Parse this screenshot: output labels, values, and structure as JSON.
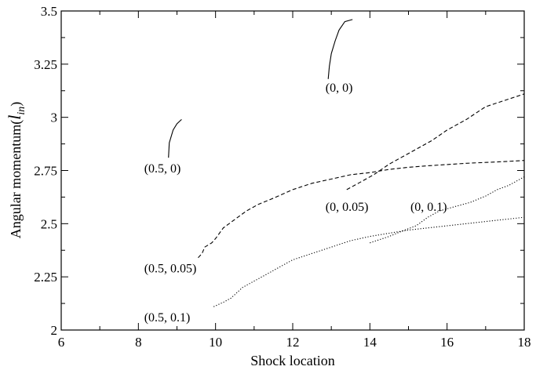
{
  "chart_data": {
    "type": "line",
    "title": "",
    "xlabel": "Shock location",
    "ylabel_main": "Angular momentum(",
    "ylabel_var": "l",
    "ylabel_sub": "in",
    "ylabel_close": ")",
    "xlim": [
      6,
      18
    ],
    "ylim": [
      2,
      3.5
    ],
    "xticks": [
      6,
      8,
      10,
      12,
      14,
      16,
      18
    ],
    "xtick_labels": [
      "6",
      "8",
      "10",
      "12",
      "14",
      "16",
      "18"
    ],
    "yticks": [
      2,
      2.25,
      2.5,
      2.75,
      3,
      3.25,
      3.5
    ],
    "ytick_labels": [
      "2",
      "2.25",
      "2.5",
      "2.75",
      "3",
      "3.25",
      "3.5"
    ],
    "grid": false,
    "series": [
      {
        "label": "(0, 0)",
        "style": "solid",
        "segments": [
          [
            [
              12.92,
              3.18
            ],
            [
              12.95,
              3.24
            ],
            [
              13.0,
              3.3
            ],
            [
              13.1,
              3.36
            ],
            [
              13.2,
              3.41
            ],
            [
              13.35,
              3.45
            ],
            [
              13.55,
              3.46
            ]
          ]
        ]
      },
      {
        "label": "(0.5, 0)",
        "style": "solid",
        "segments": [
          [
            [
              8.78,
              2.81
            ],
            [
              8.8,
              2.88
            ],
            [
              8.9,
              2.94
            ],
            [
              9.0,
              2.97
            ],
            [
              9.12,
              2.99
            ]
          ]
        ]
      },
      {
        "label": "(0, 0.05)",
        "style": "dashed",
        "segments": [
          [
            [
              13.4,
              2.66
            ],
            [
              13.7,
              2.69
            ],
            [
              14.1,
              2.73
            ],
            [
              14.5,
              2.78
            ],
            [
              14.8,
              2.81
            ],
            [
              15.2,
              2.85
            ],
            [
              15.6,
              2.89
            ],
            [
              16.0,
              2.94
            ],
            [
              16.5,
              2.99
            ],
            [
              17.0,
              3.05
            ],
            [
              17.5,
              3.08
            ],
            [
              18.0,
              3.11
            ]
          ]
        ]
      },
      {
        "label": "(0.5, 0.05)",
        "style": "dashed",
        "segments": [
          [
            [
              9.55,
              2.34
            ],
            [
              9.65,
              2.36
            ],
            [
              9.72,
              2.39
            ],
            [
              9.9,
              2.41
            ],
            [
              10.0,
              2.43
            ],
            [
              10.2,
              2.48
            ],
            [
              10.5,
              2.52
            ],
            [
              10.8,
              2.56
            ],
            [
              11.1,
              2.59
            ],
            [
              11.5,
              2.62
            ],
            [
              12.0,
              2.66
            ],
            [
              12.5,
              2.69
            ],
            [
              13.0,
              2.71
            ],
            [
              13.5,
              2.73
            ],
            [
              14.0,
              2.74
            ],
            [
              14.5,
              2.755
            ],
            [
              15.0,
              2.765
            ],
            [
              15.5,
              2.772
            ],
            [
              16.0,
              2.778
            ],
            [
              16.5,
              2.784
            ],
            [
              17.0,
              2.788
            ],
            [
              17.5,
              2.792
            ],
            [
              18.0,
              2.797
            ]
          ]
        ]
      },
      {
        "label": "(0, 0.1)",
        "style": "dotted",
        "segments": [
          [
            [
              14.0,
              2.41
            ],
            [
              14.5,
              2.44
            ],
            [
              14.9,
              2.47
            ],
            [
              15.2,
              2.49
            ],
            [
              15.5,
              2.53
            ],
            [
              15.8,
              2.56
            ],
            [
              16.2,
              2.58
            ],
            [
              16.6,
              2.6
            ],
            [
              17.0,
              2.63
            ],
            [
              17.3,
              2.66
            ],
            [
              17.6,
              2.68
            ],
            [
              18.0,
              2.72
            ]
          ]
        ]
      },
      {
        "label": "(0.5, 0.1)",
        "style": "dotted",
        "segments": [
          [
            [
              9.95,
              2.11
            ],
            [
              10.2,
              2.13
            ],
            [
              10.4,
              2.15
            ],
            [
              10.7,
              2.2
            ],
            [
              11.0,
              2.23
            ],
            [
              11.3,
              2.26
            ],
            [
              11.7,
              2.3
            ],
            [
              12.0,
              2.33
            ],
            [
              12.5,
              2.36
            ],
            [
              13.0,
              2.39
            ],
            [
              13.5,
              2.42
            ],
            [
              14.0,
              2.44
            ],
            [
              14.5,
              2.455
            ],
            [
              15.0,
              2.47
            ],
            [
              15.5,
              2.48
            ],
            [
              16.0,
              2.49
            ],
            [
              16.5,
              2.5
            ],
            [
              17.0,
              2.51
            ],
            [
              17.5,
              2.52
            ],
            [
              18.0,
              2.53
            ]
          ]
        ]
      }
    ],
    "annotations": [
      {
        "text": "(0, 0)",
        "x": 12.85,
        "y": 3.12
      },
      {
        "text": "(0.5, 0)",
        "x": 8.15,
        "y": 2.74
      },
      {
        "text": "(0, 0.05)",
        "x": 12.85,
        "y": 2.56
      },
      {
        "text": "(0, 0.1)",
        "x": 15.05,
        "y": 2.56
      },
      {
        "text": "(0.5, 0.05)",
        "x": 8.15,
        "y": 2.27
      },
      {
        "text": "(0.5, 0.1)",
        "x": 8.15,
        "y": 2.04
      }
    ]
  }
}
